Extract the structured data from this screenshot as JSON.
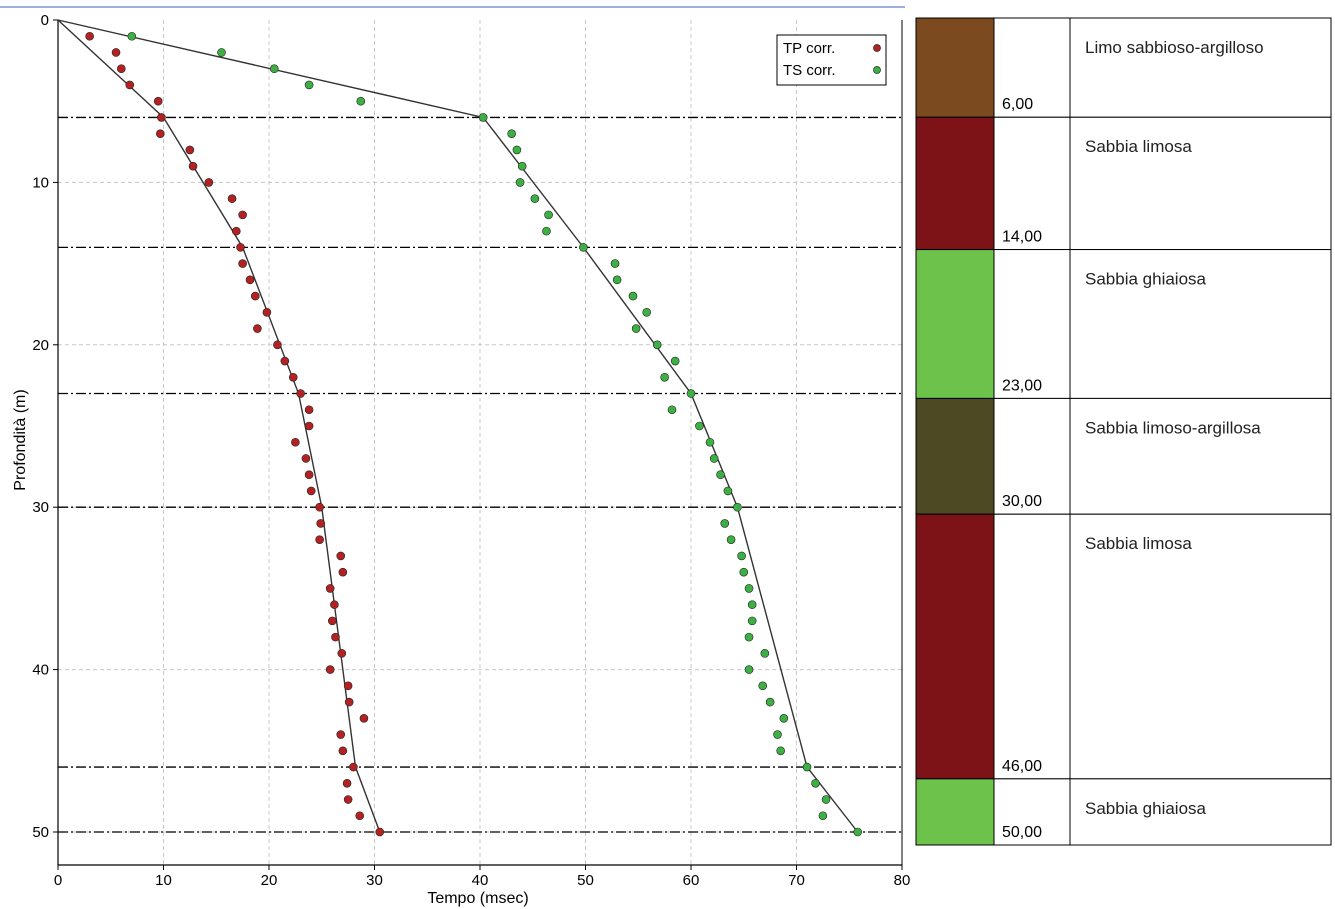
{
  "chart_data": {
    "type": "scatter",
    "xlabel": "Tempo (msec)",
    "ylabel": "Profondità (m)",
    "xlim": [
      0,
      80
    ],
    "ylim": [
      0,
      51
    ],
    "y_inverted": true,
    "xticks": [
      0,
      10,
      20,
      30,
      40,
      50,
      60,
      70,
      80
    ],
    "yticks": [
      0,
      10,
      20,
      30,
      40,
      50
    ],
    "grid": true,
    "legend_position": "top-right",
    "series": [
      {
        "name": "TP corr.",
        "color": "#b22222",
        "points": [
          [
            3,
            1
          ],
          [
            5.5,
            2
          ],
          [
            6,
            3
          ],
          [
            6.8,
            4
          ],
          [
            9.5,
            5
          ],
          [
            9.8,
            6
          ],
          [
            9.7,
            7
          ],
          [
            12.5,
            8
          ],
          [
            12.8,
            9
          ],
          [
            14.3,
            10
          ],
          [
            16.5,
            11
          ],
          [
            17.5,
            12
          ],
          [
            16.9,
            13
          ],
          [
            17.3,
            14
          ],
          [
            17.5,
            15
          ],
          [
            18.2,
            16
          ],
          [
            18.7,
            17
          ],
          [
            19.8,
            18
          ],
          [
            18.9,
            19
          ],
          [
            20.8,
            20
          ],
          [
            21.5,
            21
          ],
          [
            22.3,
            22
          ],
          [
            23,
            23
          ],
          [
            23.8,
            24
          ],
          [
            23.8,
            25
          ],
          [
            22.5,
            26
          ],
          [
            23.5,
            27
          ],
          [
            23.8,
            28
          ],
          [
            24,
            29
          ],
          [
            24.8,
            30
          ],
          [
            24.9,
            31
          ],
          [
            24.8,
            32
          ],
          [
            26.8,
            33
          ],
          [
            27,
            34
          ],
          [
            25.8,
            35
          ],
          [
            26.2,
            36
          ],
          [
            26,
            37
          ],
          [
            26.3,
            38
          ],
          [
            26.9,
            39
          ],
          [
            25.8,
            40
          ],
          [
            27.5,
            41
          ],
          [
            27.6,
            42
          ],
          [
            29,
            43
          ],
          [
            26.8,
            44
          ],
          [
            27,
            45
          ],
          [
            28,
            46
          ],
          [
            27.4,
            47
          ],
          [
            27.5,
            48
          ],
          [
            28.6,
            49
          ],
          [
            30.5,
            50
          ]
        ],
        "fit_line": [
          [
            0,
            0
          ],
          [
            10,
            6
          ],
          [
            17.5,
            14
          ],
          [
            22.8,
            23
          ],
          [
            25,
            30
          ],
          [
            28.2,
            46
          ],
          [
            30.5,
            50
          ]
        ]
      },
      {
        "name": "TS corr.",
        "color": "#3cb043",
        "points": [
          [
            7,
            1
          ],
          [
            15.5,
            2
          ],
          [
            20.5,
            3
          ],
          [
            23.8,
            4
          ],
          [
            28.7,
            5
          ],
          [
            40.3,
            6
          ],
          [
            43,
            7
          ],
          [
            43.5,
            8
          ],
          [
            44,
            9
          ],
          [
            43.8,
            10
          ],
          [
            45.2,
            11
          ],
          [
            46.5,
            12
          ],
          [
            46.3,
            13
          ],
          [
            49.8,
            14
          ],
          [
            52.8,
            15
          ],
          [
            53,
            16
          ],
          [
            54.5,
            17
          ],
          [
            55.8,
            18
          ],
          [
            54.8,
            19
          ],
          [
            56.8,
            20
          ],
          [
            58.5,
            21
          ],
          [
            57.5,
            22
          ],
          [
            60,
            23
          ],
          [
            58.2,
            24
          ],
          [
            60.8,
            25
          ],
          [
            61.8,
            26
          ],
          [
            62.2,
            27
          ],
          [
            62.8,
            28
          ],
          [
            63.5,
            29
          ],
          [
            64.4,
            30
          ],
          [
            63.2,
            31
          ],
          [
            63.8,
            32
          ],
          [
            64.8,
            33
          ],
          [
            65,
            34
          ],
          [
            65.5,
            35
          ],
          [
            65.8,
            36
          ],
          [
            65.8,
            37
          ],
          [
            65.5,
            38
          ],
          [
            67,
            39
          ],
          [
            65.5,
            40
          ],
          [
            66.8,
            41
          ],
          [
            67.5,
            42
          ],
          [
            68.8,
            43
          ],
          [
            68.2,
            44
          ],
          [
            68.5,
            45
          ],
          [
            71,
            46
          ],
          [
            71.8,
            47
          ],
          [
            72.8,
            48
          ],
          [
            72.5,
            49
          ],
          [
            75.8,
            50
          ]
        ],
        "fit_line": [
          [
            0,
            0
          ],
          [
            40.3,
            6
          ],
          [
            49.8,
            14
          ],
          [
            60,
            23
          ],
          [
            64.4,
            30
          ],
          [
            71,
            46
          ],
          [
            75.8,
            50
          ]
        ]
      }
    ],
    "layer_boundaries": [
      6,
      14,
      23,
      30,
      46,
      50
    ]
  },
  "stratigraphy": {
    "layers": [
      {
        "top": 0,
        "bottom": 6,
        "depth_label": "6,00",
        "name": "Limo sabbioso-argilloso",
        "color": "#7b4a1e"
      },
      {
        "top": 6,
        "bottom": 14,
        "depth_label": "14,00",
        "name": "Sabbia limosa",
        "color": "#7d1316"
      },
      {
        "top": 14,
        "bottom": 23,
        "depth_label": "23,00",
        "name": "Sabbia ghiaiosa",
        "color": "#6cc24a"
      },
      {
        "top": 23,
        "bottom": 30,
        "depth_label": "30,00",
        "name": "Sabbia limoso-argillosa",
        "color": "#4b4a22"
      },
      {
        "top": 30,
        "bottom": 46,
        "depth_label": "46,00",
        "name": "Sabbia limosa",
        "color": "#7d1316"
      },
      {
        "top": 46,
        "bottom": 50,
        "depth_label": "50,00",
        "name": "Sabbia ghiaiosa",
        "color": "#6cc24a"
      }
    ]
  }
}
